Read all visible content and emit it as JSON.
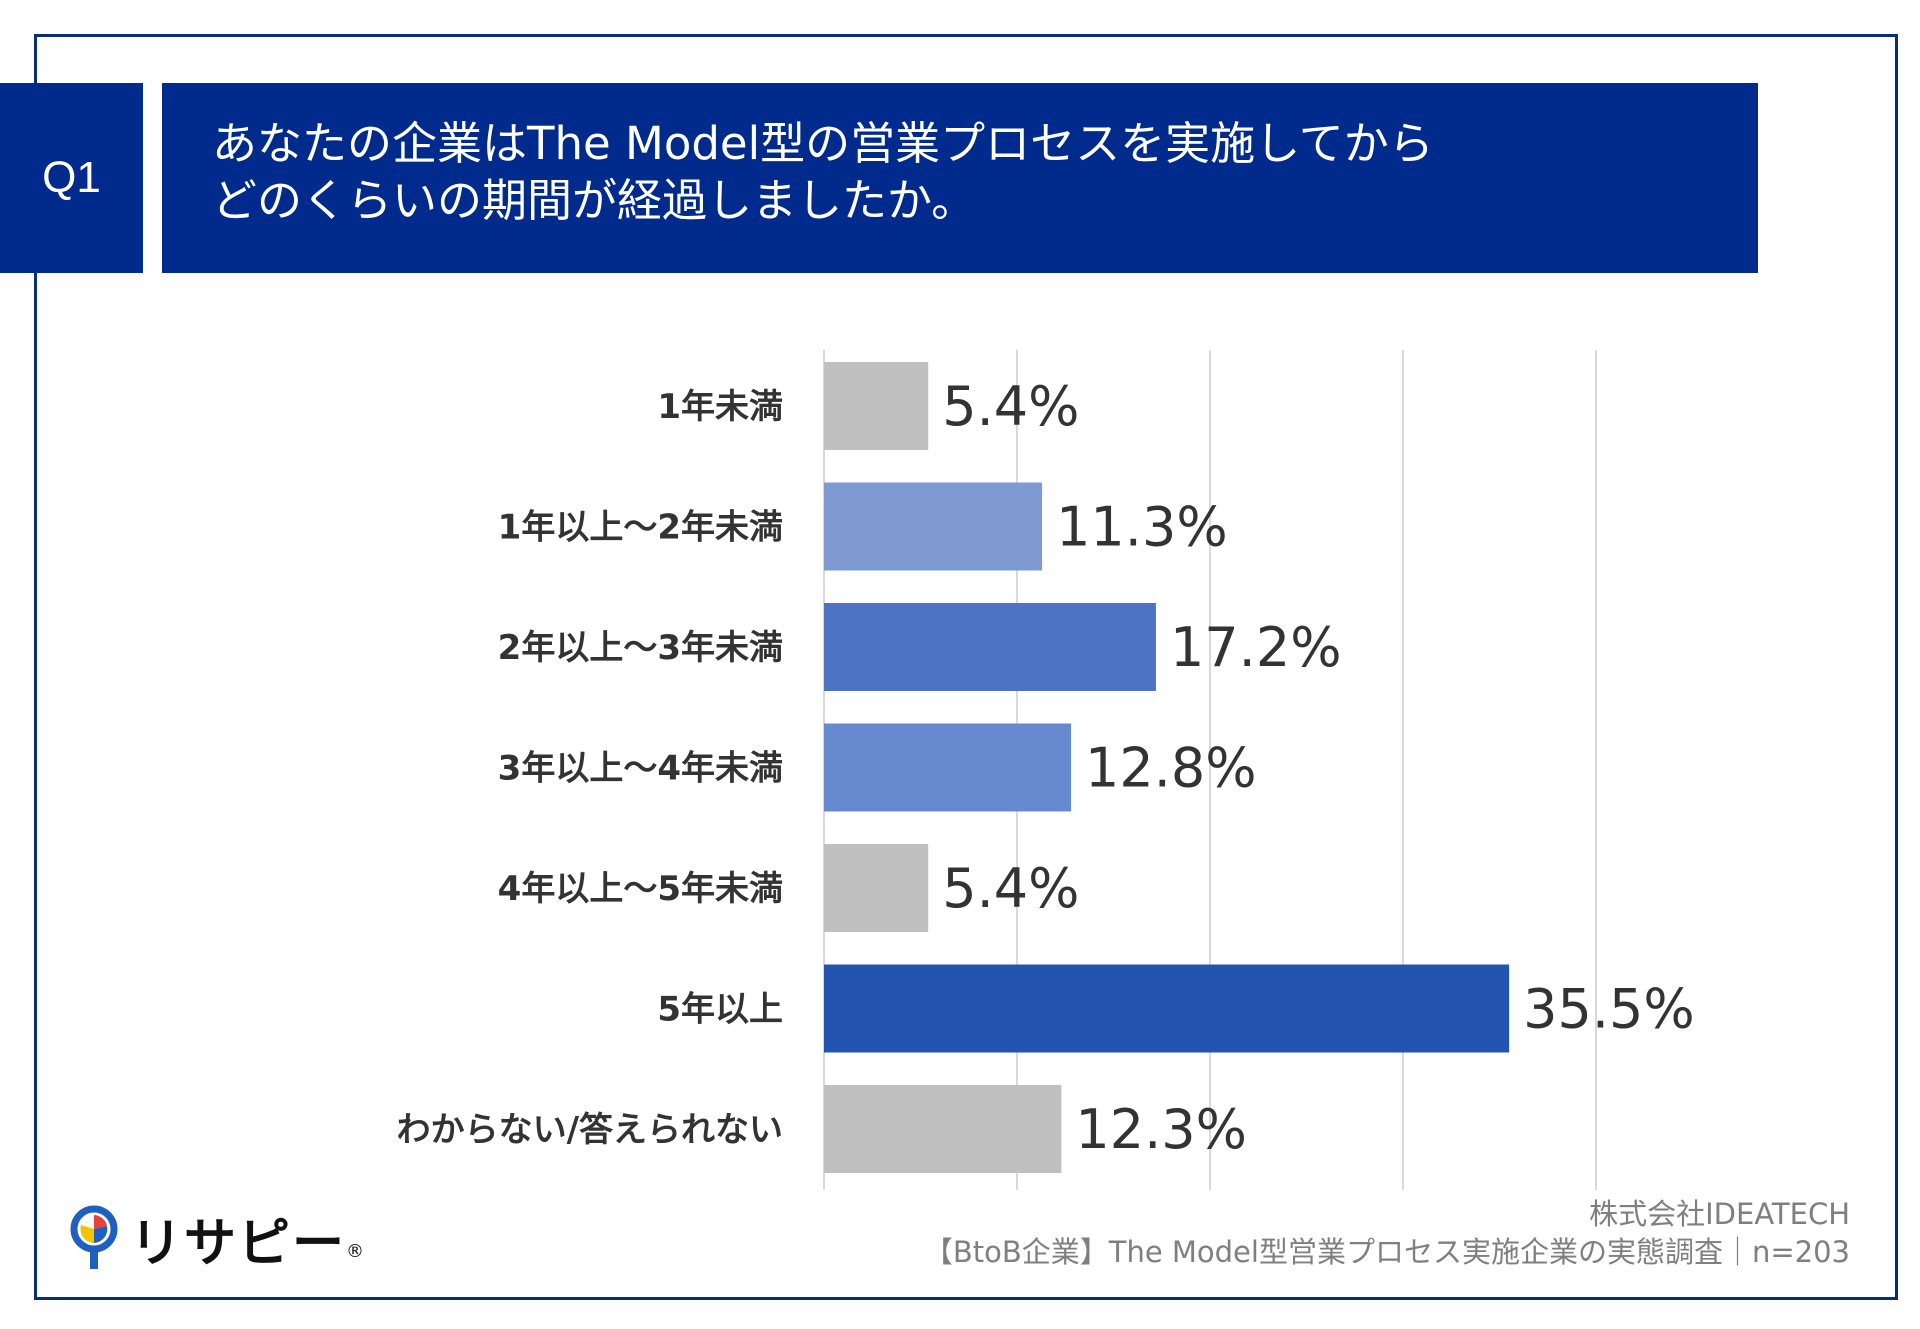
{
  "badge": "Q1",
  "question": {
    "line1": "あなたの企業はThe Model型の営業プロセスを実施してから",
    "line2": "どのくらいの期間が経過しましたか。"
  },
  "colors": {
    "header_bg": "#002b8c",
    "gray": "#c0c0c0",
    "blue_light": "#7e9ad0",
    "blue_mid_light": "#6689cf",
    "blue_mid": "#4d74c4",
    "blue_dark": "#2354b2",
    "grid": "#d9d9d9"
  },
  "chart_data": {
    "type": "bar",
    "orientation": "horizontal",
    "title": "あなたの企業はThe Model型の営業プロセスを実施してからどのくらいの期間が経過しましたか。",
    "categories": [
      "1年未満",
      "1年以上〜2年未満",
      "2年以上〜3年未満",
      "3年以上〜4年未満",
      "4年以上〜5年未満",
      "5年以上",
      "わからない/答えられない"
    ],
    "values": [
      5.4,
      11.3,
      17.2,
      12.8,
      5.4,
      35.5,
      12.3
    ],
    "value_labels": [
      "5.4%",
      "11.3%",
      "17.2%",
      "12.8%",
      "5.4%",
      "35.5%",
      "12.3%"
    ],
    "bar_colors": [
      "#c0c0c0",
      "#7e9ad0",
      "#4d74c4",
      "#6689cf",
      "#c0c0c0",
      "#2354b2",
      "#c0c0c0"
    ],
    "xlim": [
      0,
      40
    ],
    "gridlines": [
      0,
      10,
      20,
      30,
      40
    ],
    "xlabel": "",
    "ylabel": ""
  },
  "logo": {
    "icon": "lightbulb-pin-icon",
    "text": "リサピー",
    "mark": "®"
  },
  "source": {
    "company": "株式会社IDEATECH",
    "survey": "【BtoB企業】The Model型営業プロセス実施企業の実態調査｜n=203"
  }
}
